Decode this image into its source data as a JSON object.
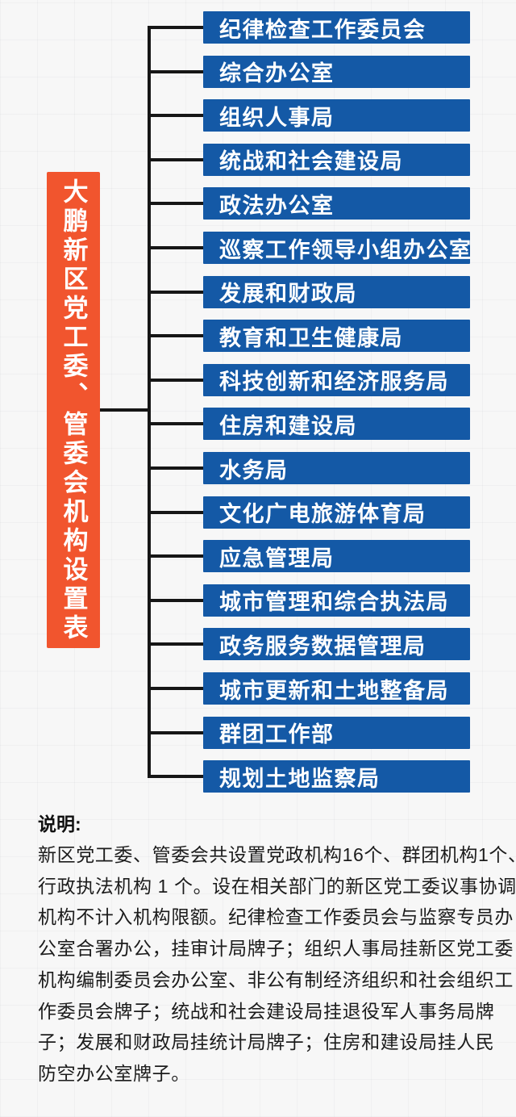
{
  "org_chart": {
    "root": {
      "label": "大鹏新区党工委、管委会机构设置表",
      "box_color": "#f1552e",
      "text_color": "#ffffff"
    },
    "departments": [
      "纪律检查工作委员会",
      "综合办公室",
      "组织人事局",
      "统战和社会建设局",
      "政法办公室",
      "巡察工作领导小组办公室",
      "发展和财政局",
      "教育和卫生健康局",
      "科技创新和经济服务局",
      "住房和建设局",
      "水务局",
      "文化广电旅游体育局",
      "应急管理局",
      "城市管理和综合执法局",
      "政务服务数据管理局",
      "城市更新和土地整备局",
      "群团工作部",
      "规划土地监察局"
    ],
    "bar_color": "#1459a6",
    "bar_text_color": "#ffffff",
    "connector_color": "#161616"
  },
  "notes": {
    "heading": "说明:",
    "lines": [
      "新区党工委、管委会共设置党政机构16个、群团机构1个、",
      "行政执法机构 1 个。设在相关部门的新区党工委议事协调",
      "机构不计入机构限额。纪律检查工作委员会与监察专员办",
      "公室合署办公，挂审计局牌子；组织人事局挂新区党工委",
      "机构编制委员会办公室、非公有制经济组织和社会组织工",
      "作委员会牌子；统战和社会建设局挂退役军人事务局牌",
      "子；发展和财政局挂统计局牌子；住房和建设局挂人民",
      "防空办公室牌子。"
    ]
  }
}
